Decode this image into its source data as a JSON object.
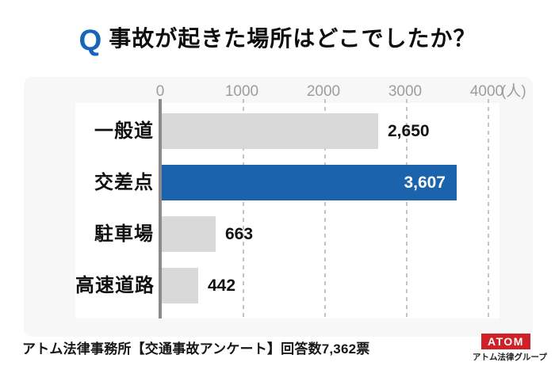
{
  "title": {
    "q_mark": "Q",
    "text": "事故が起きた場所はどこでしたか？"
  },
  "chart_data": {
    "type": "bar",
    "orientation": "horizontal",
    "title": "事故が起きた場所はどこでしたか？",
    "categories": [
      "一般道",
      "交差点",
      "駐車場",
      "高速道路"
    ],
    "values": [
      2650,
      3607,
      663,
      442
    ],
    "value_labels": [
      "2,650",
      "3,607",
      "663",
      "442"
    ],
    "highlight_index": 1,
    "xlim": [
      0,
      4000
    ],
    "x_ticks": [
      0,
      1000,
      2000,
      3000,
      4000
    ],
    "x_tick_labels": [
      "0",
      "1000",
      "2000",
      "3000",
      "4000"
    ],
    "x_unit": "(人)",
    "grid": "dashed-vertical",
    "legend": "none",
    "colors": {
      "bar": "#d9d9d9",
      "bar_highlight": "#1b63ac",
      "accent_blue": "#1566b8",
      "tick_text": "#9d9d9d",
      "gridline": "#c4c4c4",
      "axis_line": "#8a8a8a"
    }
  },
  "footer": {
    "source_text": "アトム法律事務所【交通事故アンケート】回答数7,362票"
  },
  "logo": {
    "brand": "ATOM",
    "group_name": "アトム法律グループ",
    "brand_bg": "#d02028"
  }
}
